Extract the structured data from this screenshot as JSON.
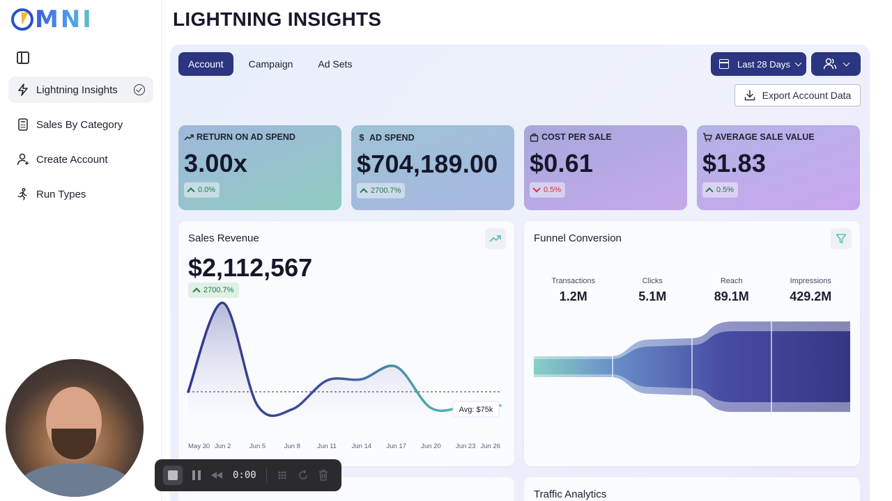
{
  "app": {
    "logo_text": "MNI",
    "page_title": "LIGHTNING INSIGHTS"
  },
  "sidebar": {
    "items": [
      {
        "label": "Lightning Insights",
        "icon": "lightning-icon",
        "active": true
      },
      {
        "label": "Sales By Category",
        "icon": "calculator-icon"
      },
      {
        "label": "Create Account",
        "icon": "user-plus-icon"
      },
      {
        "label": "Run Types",
        "icon": "runner-icon"
      }
    ]
  },
  "tabs": [
    {
      "label": "Account",
      "active": true
    },
    {
      "label": "Campaign"
    },
    {
      "label": "Ad Sets"
    }
  ],
  "toolbar": {
    "date_range": "Last 28 Days",
    "export_label": "Export Account Data"
  },
  "kpis": [
    {
      "label": "RETURN ON AD SPEND",
      "value": "3.00x",
      "delta": "0.0%",
      "direction": "up"
    },
    {
      "label": "AD SPEND",
      "value": "$704,189.00",
      "delta": "2700.7%",
      "direction": "up"
    },
    {
      "label": "COST PER SALE",
      "value": "$0.61",
      "delta": "0.5%",
      "direction": "down"
    },
    {
      "label": "AVERAGE SALE VALUE",
      "value": "$1.83",
      "delta": "0.5%",
      "direction": "up"
    }
  ],
  "sales_revenue": {
    "title": "Sales Revenue",
    "value": "$2,112,567",
    "delta": "2700.7%",
    "avg_label": "Avg: $75k"
  },
  "funnel": {
    "title": "Funnel Conversion",
    "stats": [
      {
        "label": "Transactions",
        "value": "1.2M"
      },
      {
        "label": "Clicks",
        "value": "5.1M"
      },
      {
        "label": "Reach",
        "value": "89.1M"
      },
      {
        "label": "Impressions",
        "value": "429.2M"
      }
    ]
  },
  "bottom_cards": {
    "right_title": "Traffic Analytics"
  },
  "recorder": {
    "time": "0:00"
  },
  "chart_data": {
    "type": "line",
    "x": [
      "May 30",
      "Jun 2",
      "Jun 5",
      "Jun 8",
      "Jun 11",
      "Jun 14",
      "Jun 17",
      "Jun 20",
      "Jun 23",
      "Jun 26"
    ],
    "series": [
      {
        "values": [
          75,
          430,
          20,
          5,
          120,
          125,
          175,
          10,
          15,
          20
        ]
      }
    ],
    "avg": 75,
    "ylim": [
      -50,
      450
    ],
    "xlabel": "",
    "ylabel": "",
    "title": ""
  }
}
